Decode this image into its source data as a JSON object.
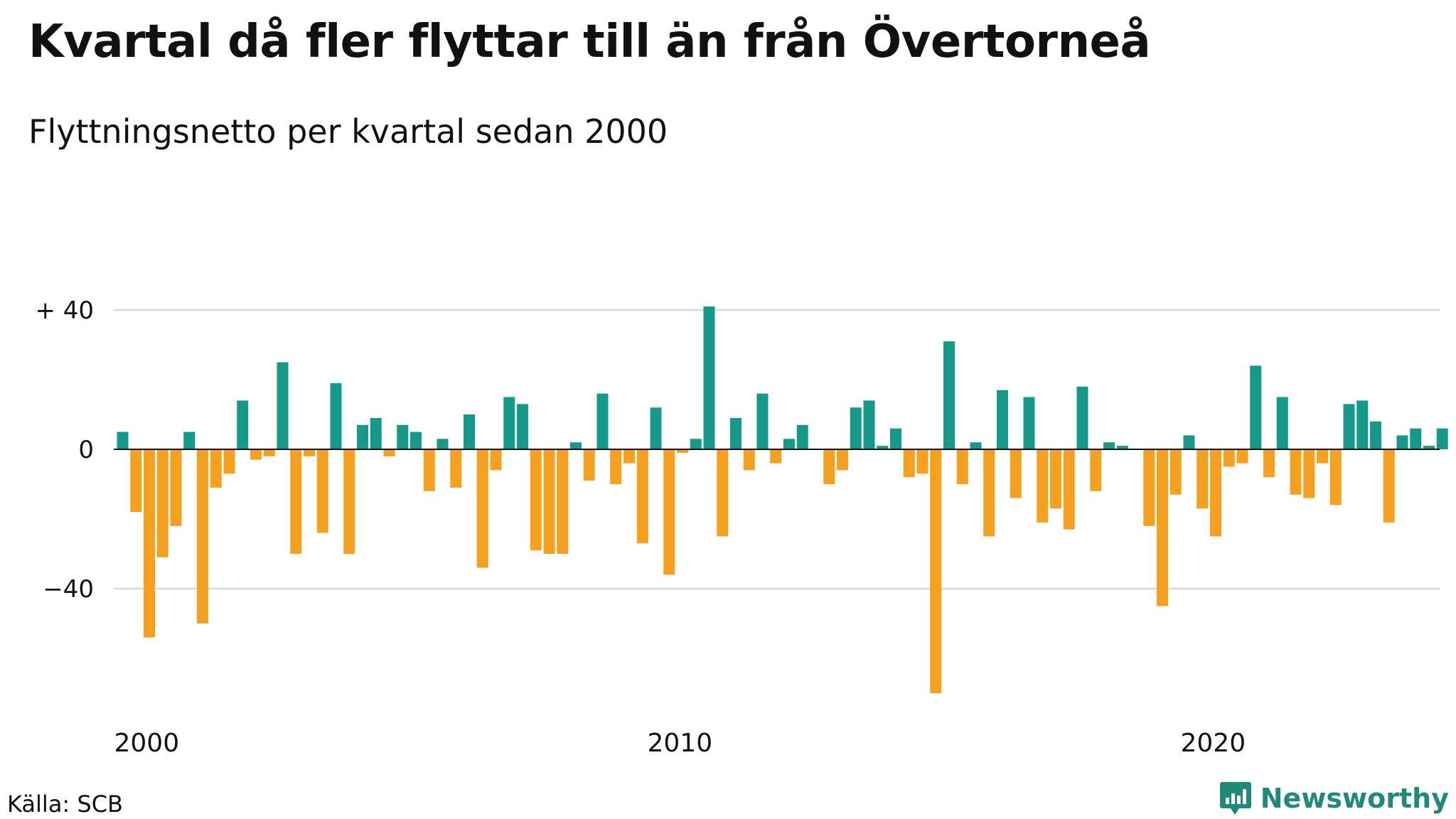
{
  "title": "Kvartal då fler flyttar till än från Övertorneå",
  "subtitle": "Flyttningsnetto per kvartal sedan 2000",
  "source": "Källa: SCB",
  "brand": "Newsworthy",
  "colors": {
    "positive": "#159a8a",
    "negative": "#f5a01e",
    "grid": "#dddddd",
    "zero_line": "#111111",
    "brand": "#1f8a78"
  },
  "chart_data": {
    "type": "bar",
    "xlabel": "",
    "ylabel": "",
    "ylim": [
      -73,
      42
    ],
    "grid": true,
    "start": "2000 Q1",
    "yticks": [
      {
        "value": 40,
        "label": "+ 40"
      },
      {
        "value": 0,
        "label": "0"
      },
      {
        "value": -40,
        "label": "−40"
      }
    ],
    "xticks": [
      {
        "index": 0,
        "label": "2000"
      },
      {
        "index": 40,
        "label": "2010"
      },
      {
        "index": 80,
        "label": "2020"
      }
    ],
    "values": [
      5,
      -18,
      -54,
      -31,
      -22,
      5,
      -50,
      -11,
      -7,
      14,
      -3,
      -2,
      25,
      -30,
      -2,
      -24,
      19,
      -30,
      7,
      9,
      -2,
      7,
      5,
      -12,
      3,
      -11,
      10,
      -34,
      -6,
      15,
      13,
      -29,
      -30,
      -30,
      2,
      -9,
      16,
      -10,
      -4,
      -27,
      12,
      -36,
      -1,
      3,
      41,
      -25,
      9,
      -6,
      16,
      -4,
      3,
      7,
      0,
      -10,
      -6,
      12,
      14,
      1,
      6,
      -8,
      -7,
      -70,
      31,
      -10,
      2,
      -25,
      17,
      -14,
      15,
      -21,
      -17,
      -23,
      18,
      -12,
      2,
      1,
      0,
      -22,
      -45,
      -13,
      4,
      -17,
      -25,
      -5,
      -4,
      24,
      -8,
      15,
      -13,
      -14,
      -4,
      -16,
      13,
      14,
      8,
      -21,
      4,
      6,
      1,
      6
    ]
  }
}
